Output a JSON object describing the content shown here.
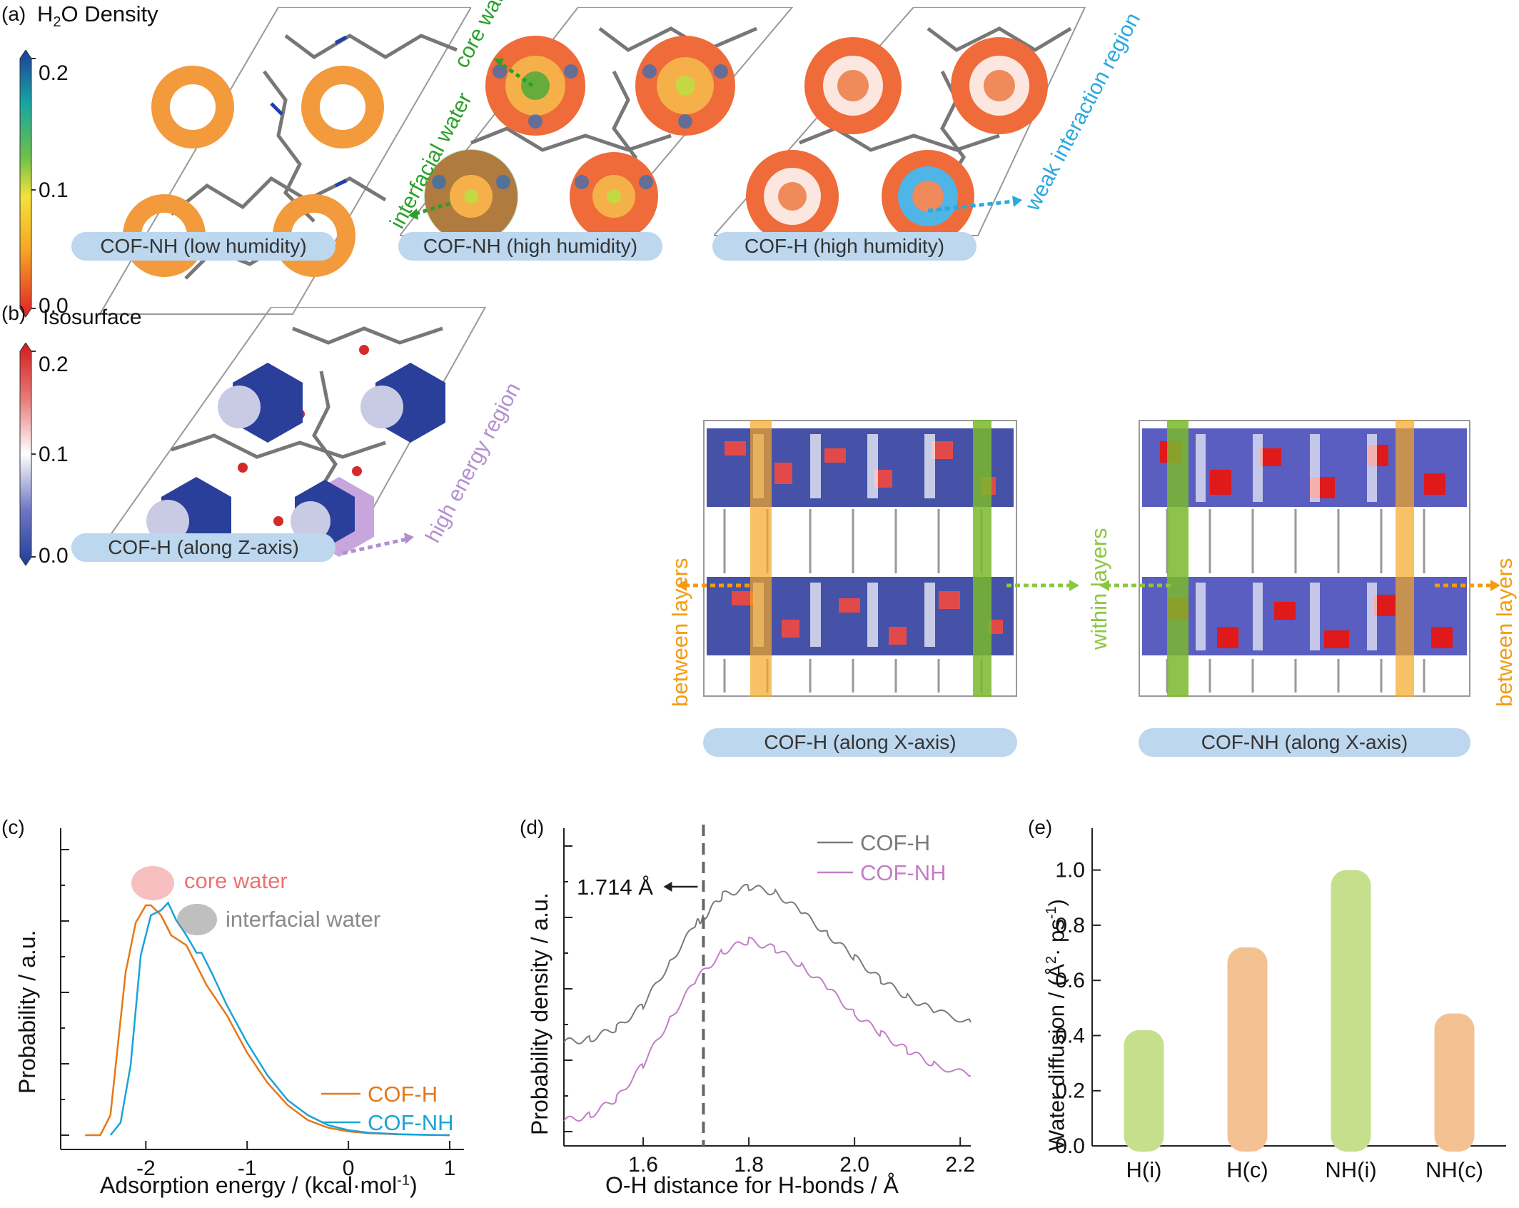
{
  "panel_a": {
    "label": "(a)",
    "colorbar_title_prefix": "H",
    "colorbar_title_sub": "2",
    "colorbar_title_suffix": "O Density",
    "colorbar_ticks": [
      "0.2",
      "0.1",
      "0.0"
    ],
    "captions": [
      "COF-NH (low humidity)",
      "COF-NH (high humidity)",
      "COF-H (high humidity)"
    ],
    "annotations": {
      "core": "core water",
      "interfacial": "interfacial water",
      "weak": "weak interaction region"
    },
    "colors": {
      "core": "#2aa02a",
      "interfacial": "#2aa02a",
      "weak": "#2aa8e0"
    }
  },
  "panel_b": {
    "label": "(b)",
    "colorbar_title": "Isosurface",
    "colorbar_ticks": [
      "0.2",
      "0.1",
      "0.0"
    ],
    "captions": [
      "COF-H (along Z-axis)",
      "COF-H (along X-axis)",
      "COF-NH (along X-axis)"
    ],
    "annotations": {
      "high_energy": "high energy region",
      "between_left": "between layers",
      "within": "within layers",
      "between_right": "between layers"
    },
    "colors": {
      "high_energy": "#b48fd0",
      "between": "#f39c12",
      "within": "#8cc63f"
    }
  },
  "chart_data": [
    {
      "panel": "(c)",
      "type": "line",
      "xlabel": "Adsorption energy / (kcal·mol",
      "xlabel_sup": "-1",
      "xlabel_end": ")",
      "ylabel": "Probability / a.u.",
      "xlim": [
        -2.7,
        1.0
      ],
      "xticks": [
        -2,
        -1,
        0,
        1
      ],
      "xtick_labels": [
        "-2",
        "-1",
        "0",
        "1"
      ],
      "ylim": [
        0,
        1.0
      ],
      "annotations": [
        "core water",
        "interfacial water"
      ],
      "series": [
        {
          "name": "COF-H",
          "color": "#e67817",
          "x": [
            -2.6,
            -2.45,
            -2.35,
            -2.2,
            -2.1,
            -2.0,
            -1.95,
            -1.85,
            -1.75,
            -1.6,
            -1.5,
            -1.4,
            -1.2,
            -1.0,
            -0.8,
            -0.6,
            -0.4,
            -0.2,
            0.0,
            0.2,
            0.5,
            0.8,
            1.0
          ],
          "y": [
            0.0,
            0.0,
            0.08,
            0.65,
            0.85,
            0.92,
            0.92,
            0.88,
            0.8,
            0.76,
            0.68,
            0.6,
            0.48,
            0.33,
            0.21,
            0.12,
            0.06,
            0.03,
            0.015,
            0.008,
            0.003,
            0.001,
            0.0
          ]
        },
        {
          "name": "COF-NH",
          "color": "#1aa3d9",
          "x": [
            -2.35,
            -2.25,
            -2.15,
            -2.05,
            -1.95,
            -1.85,
            -1.78,
            -1.7,
            -1.6,
            -1.5,
            -1.45,
            -1.35,
            -1.2,
            -1.0,
            -0.8,
            -0.6,
            -0.4,
            -0.2,
            0.0,
            0.2,
            0.5,
            0.8,
            1.0
          ],
          "y": [
            0.0,
            0.05,
            0.28,
            0.72,
            0.88,
            0.9,
            0.93,
            0.86,
            0.8,
            0.73,
            0.73,
            0.65,
            0.52,
            0.37,
            0.24,
            0.14,
            0.08,
            0.04,
            0.02,
            0.01,
            0.004,
            0.001,
            0.0
          ]
        }
      ]
    },
    {
      "panel": "(d)",
      "type": "line",
      "xlabel": "O-H distance for H-bonds / Å",
      "ylabel": "Probability density / a.u.",
      "xlim": [
        1.45,
        2.22
      ],
      "xticks": [
        1.6,
        1.8,
        2.0,
        2.2
      ],
      "xtick_labels": [
        "1.6",
        "1.8",
        "2.0",
        "2.2"
      ],
      "ylim": [
        0,
        1.0
      ],
      "vline": 1.714,
      "vline_label": "1.714 Å",
      "series": [
        {
          "name": "COF-H",
          "color": "#7a7a7a",
          "x": [
            1.45,
            1.5,
            1.55,
            1.6,
            1.65,
            1.7,
            1.714,
            1.75,
            1.8,
            1.85,
            1.9,
            1.95,
            2.0,
            2.05,
            2.1,
            2.15,
            2.22
          ],
          "y": [
            0.28,
            0.29,
            0.33,
            0.41,
            0.56,
            0.7,
            0.72,
            0.8,
            0.83,
            0.81,
            0.74,
            0.66,
            0.58,
            0.5,
            0.44,
            0.39,
            0.35
          ]
        },
        {
          "name": "COF-NH",
          "color": "#c27ec5",
          "x": [
            1.45,
            1.5,
            1.55,
            1.6,
            1.65,
            1.7,
            1.75,
            1.8,
            1.85,
            1.9,
            1.95,
            2.0,
            2.05,
            2.1,
            2.15,
            2.22
          ],
          "y": [
            0.0,
            0.02,
            0.08,
            0.2,
            0.36,
            0.5,
            0.6,
            0.64,
            0.61,
            0.55,
            0.47,
            0.38,
            0.31,
            0.25,
            0.2,
            0.16
          ]
        }
      ]
    },
    {
      "panel": "(e)",
      "type": "bar",
      "categories": [
        "H(i)",
        "H(c)",
        "NH(i)",
        "NH(c)"
      ],
      "values": [
        0.42,
        0.72,
        1.0,
        0.48
      ],
      "colors": [
        "#c5df8c",
        "#f4c192",
        "#c5df8c",
        "#f4c192"
      ],
      "ylabel": "Water diffusion / (Å",
      "ylabel_sup1": "2",
      "ylabel_mid": "· ps",
      "ylabel_sup2": "-1",
      "ylabel_end": ")",
      "ylim": [
        0,
        1.1
      ],
      "yticks": [
        "0.0",
        "0.2",
        "0.4",
        "0.6",
        "0.8",
        "1.0"
      ]
    }
  ]
}
